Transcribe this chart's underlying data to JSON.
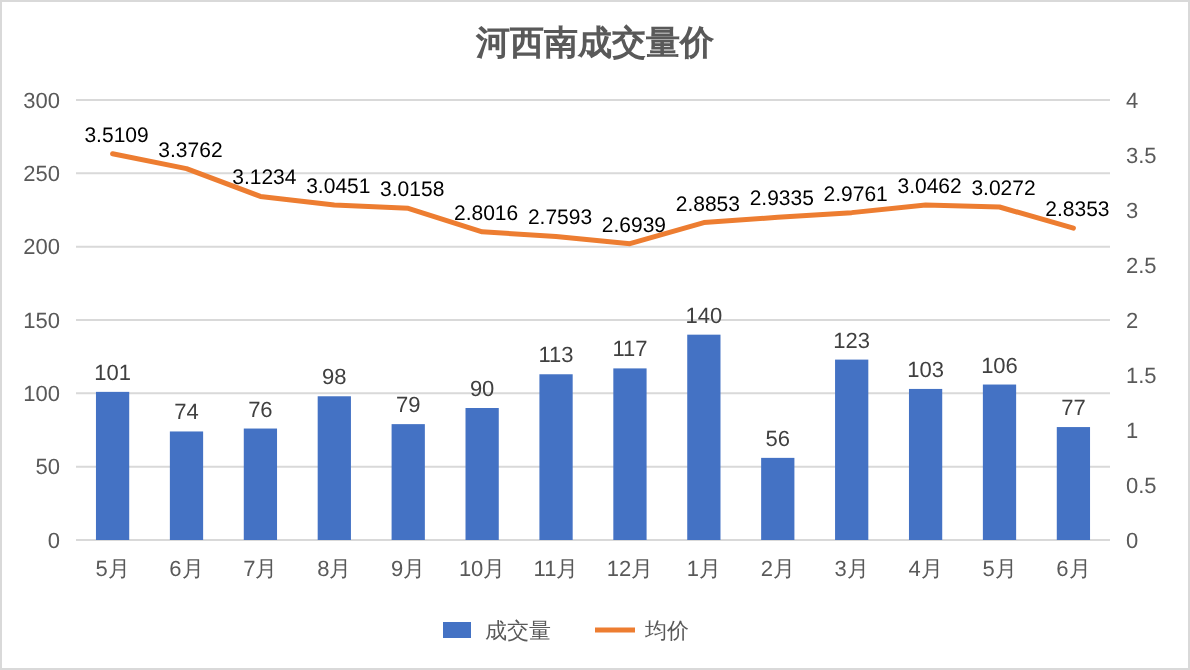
{
  "chart_data": {
    "type": "bar",
    "title": "河西南成交量价",
    "categories": [
      "5月",
      "6月",
      "7月",
      "8月",
      "9月",
      "10月",
      "11月",
      "12月",
      "1月",
      "2月",
      "3月",
      "4月",
      "5月",
      "6月"
    ],
    "series": [
      {
        "name": "成交量",
        "color": "#4472c4",
        "values": [
          101,
          74,
          76,
          98,
          79,
          90,
          113,
          117,
          140,
          56,
          123,
          103,
          106,
          77
        ]
      },
      {
        "name": "均价",
        "type": "line",
        "axis": "y2",
        "color": "#ed7d31",
        "values": [
          3.5109,
          3.3762,
          3.1234,
          3.0451,
          3.0158,
          2.8016,
          2.7593,
          2.6939,
          2.8853,
          2.9335,
          2.9761,
          3.0462,
          3.0272,
          2.8353
        ]
      }
    ],
    "ylim": [
      0,
      300
    ],
    "yticks": [
      0,
      50,
      100,
      150,
      200,
      250,
      300
    ],
    "y2lim": [
      0,
      4
    ],
    "y2ticks": [
      0,
      0.5,
      1,
      1.5,
      2,
      2.5,
      3,
      3.5,
      4
    ],
    "grid": "y",
    "legend": "bottom",
    "data_labels": true
  }
}
